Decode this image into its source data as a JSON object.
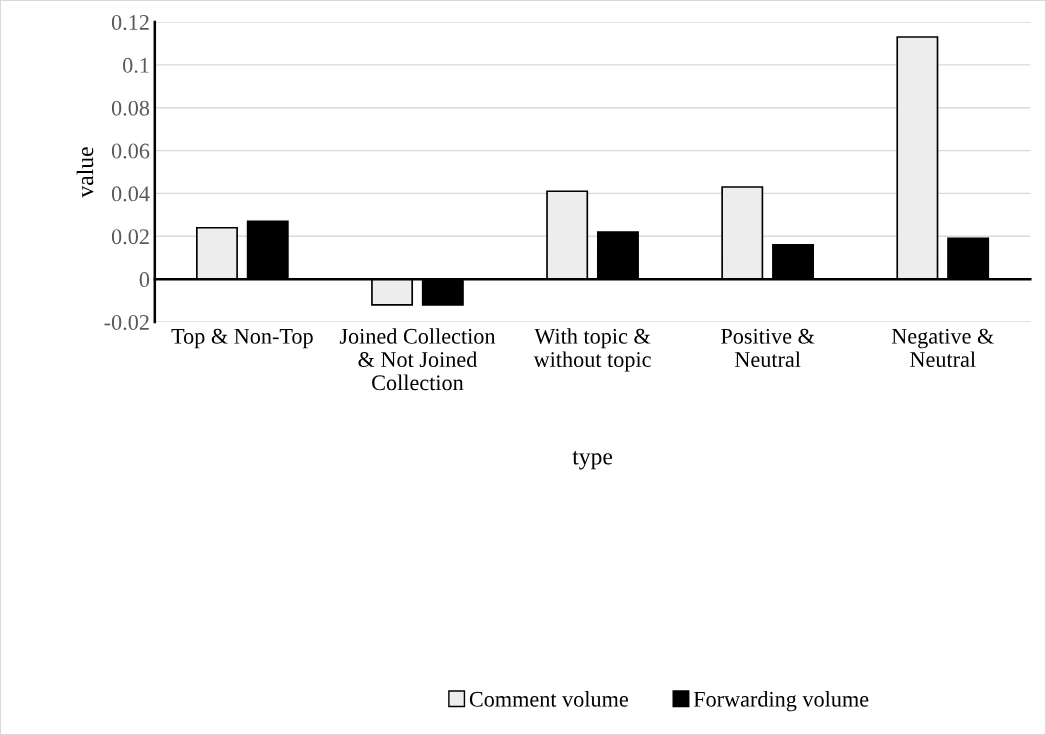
{
  "chart_data": {
    "type": "bar",
    "xlabel": "type",
    "ylabel": "value",
    "categories": [
      "Top & Non-Top",
      "Joined Collection\n& Not Joined\nCollection",
      "With topic &\nwithout topic",
      "Positive &\nNeutral",
      "Negative &\nNeutral"
    ],
    "series": [
      {
        "name": "Comment volume",
        "color": "#ededed",
        "values": [
          0.024,
          -0.012,
          0.041,
          0.043,
          0.113
        ]
      },
      {
        "name": "Forwarding volume",
        "color": "#000000",
        "values": [
          0.027,
          -0.012,
          0.022,
          0.016,
          0.019
        ]
      }
    ],
    "ylim": [
      -0.02,
      0.12
    ],
    "yticks": [
      {
        "value": -0.02,
        "label": "-0.02"
      },
      0,
      0.02,
      0.04,
      0.06,
      0.08,
      0.1,
      0.12
    ],
    "grid": "y",
    "legend": "bottom"
  }
}
